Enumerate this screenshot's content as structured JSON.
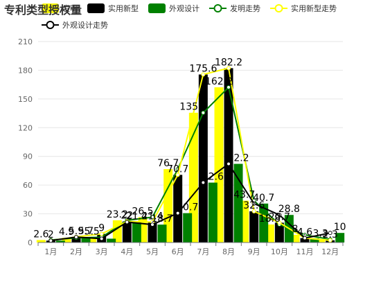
{
  "chart_data": {
    "type": "bar",
    "title": "专利类型授权量",
    "categories": [
      "1月",
      "2月",
      "3月",
      "4月",
      "5月",
      "6月",
      "7月",
      "8月",
      "9月",
      "10月",
      "11月",
      "12月"
    ],
    "ylim": [
      0,
      210
    ],
    "yticks": [
      0,
      30,
      60,
      90,
      120,
      150,
      180,
      210
    ],
    "grid": true,
    "legend_position": "top",
    "series": [
      {
        "name": "发明",
        "kind": "bar",
        "color": "#ffff00",
        "values": [
          2.6,
          4.9,
          5.5,
          23.2,
          26.5,
          76.7,
          135.6,
          162.2,
          43.7,
          18.8,
          8.0,
          3.3
        ]
      },
      {
        "name": "实用新型",
        "kind": "bar",
        "color": "#000000",
        "values": [
          2.0,
          5.9,
          9.0,
          22.0,
          21.4,
          70.7,
          175.6,
          182.2,
          32.6,
          20.7,
          4.6,
          2.3
        ]
      },
      {
        "name": "外观设计",
        "kind": "bar",
        "color": "#008000",
        "values": [
          2.0,
          5.7,
          4.0,
          21.4,
          18.7,
          30.7,
          62.6,
          82.2,
          40.7,
          28.8,
          4.6,
          10.0
        ]
      },
      {
        "name": "发明走势",
        "kind": "line",
        "color": "#008000",
        "values": [
          2.6,
          4.9,
          5.5,
          23.2,
          26.5,
          76.7,
          135.6,
          162.2,
          43.7,
          18.8,
          8.0,
          3.3
        ]
      },
      {
        "name": "实用新型走势",
        "kind": "line",
        "color": "#ffff00",
        "values": [
          2.0,
          5.9,
          9.0,
          22.0,
          21.4,
          70.7,
          175.6,
          182.2,
          32.6,
          20.7,
          4.6,
          2.3
        ]
      },
      {
        "name": "外观设计走势",
        "kind": "line",
        "color": "#000000",
        "values": [
          2.0,
          5.7,
          4.0,
          21.4,
          18.7,
          30.7,
          62.6,
          82.2,
          40.7,
          28.8,
          4.6,
          10.0
        ]
      }
    ],
    "data_labels": [
      {
        "series": 0,
        "category": 0,
        "text": "2.6"
      },
      {
        "series": 1,
        "category": 0,
        "text": "2"
      },
      {
        "series": 0,
        "category": 1,
        "text": "4.9"
      },
      {
        "series": 1,
        "category": 1,
        "text": "5.9"
      },
      {
        "series": 2,
        "category": 1,
        "text": "5.7"
      },
      {
        "series": 0,
        "category": 2,
        "text": "5.5"
      },
      {
        "series": 1,
        "category": 2,
        "text": "9"
      },
      {
        "series": 0,
        "category": 3,
        "text": "23.2"
      },
      {
        "series": 1,
        "category": 3,
        "text": "22"
      },
      {
        "series": 2,
        "category": 3,
        "text": "21.4"
      },
      {
        "series": 0,
        "category": 4,
        "text": "26.5"
      },
      {
        "series": 1,
        "category": 4,
        "text": "21.4"
      },
      {
        "series": 2,
        "category": 4,
        "text": "18.7"
      },
      {
        "series": 0,
        "category": 5,
        "text": "76.7"
      },
      {
        "series": 1,
        "category": 5,
        "text": "70.7"
      },
      {
        "series": 2,
        "category": 5,
        "text": "30.7"
      },
      {
        "series": 0,
        "category": 6,
        "text": "135.6"
      },
      {
        "series": 1,
        "category": 6,
        "text": "175.6"
      },
      {
        "series": 2,
        "category": 6,
        "text": "62.6"
      },
      {
        "series": 0,
        "category": 7,
        "text": "162.2"
      },
      {
        "series": 1,
        "category": 7,
        "text": "182.2"
      },
      {
        "series": 2,
        "category": 7,
        "text": "82.2"
      },
      {
        "series": 0,
        "category": 8,
        "text": "43.7"
      },
      {
        "series": 1,
        "category": 8,
        "text": "32.6"
      },
      {
        "series": 2,
        "category": 8,
        "text": "40.7"
      },
      {
        "series": 0,
        "category": 9,
        "text": "18.8"
      },
      {
        "series": 1,
        "category": 9,
        "text": "20.7"
      },
      {
        "series": 2,
        "category": 9,
        "text": "28.8"
      },
      {
        "series": 0,
        "category": 10,
        "text": "8"
      },
      {
        "series": 1,
        "category": 10,
        "text": "4.6"
      },
      {
        "series": 0,
        "category": 11,
        "text": "3.3"
      },
      {
        "series": 1,
        "category": 11,
        "text": "2.3"
      },
      {
        "series": 2,
        "category": 11,
        "text": "10"
      }
    ]
  }
}
